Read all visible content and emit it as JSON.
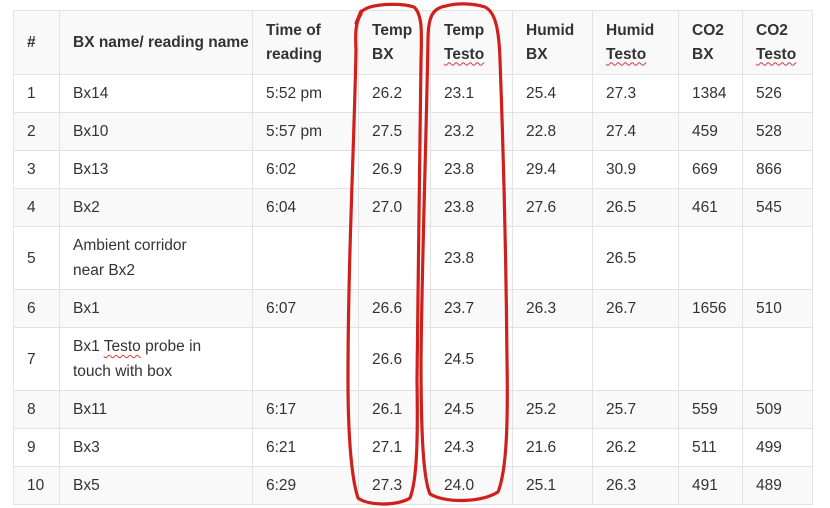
{
  "table": {
    "headers": {
      "num": "#",
      "name": "BX name/ reading name",
      "time_line1": "Time of",
      "time_line2": "reading",
      "tempbx_line1": "Temp",
      "tempbx_line2": "BX",
      "temptesto_line1": "Temp",
      "temptesto_line2": "Testo",
      "humidbx_line1": "Humid",
      "humidbx_line2": "BX",
      "humidtesto_line1": "Humid",
      "humidtesto_line2": "Testo",
      "co2bx_line1": "CO2",
      "co2bx_line2": "BX",
      "co2testo_line1": "CO2",
      "co2testo_line2": "Testo"
    },
    "rows": [
      {
        "num": "1",
        "name": "Bx14",
        "time": "5:52 pm",
        "temp_bx": "26.2",
        "temp_testo": "23.1",
        "humid_bx": "25.4",
        "humid_testo": "27.3",
        "co2_bx": "1384",
        "co2_testo": "526"
      },
      {
        "num": "2",
        "name": "Bx10",
        "time": "5:57 pm",
        "temp_bx": "27.5",
        "temp_testo": "23.2",
        "humid_bx": "22.8",
        "humid_testo": "27.4",
        "co2_bx": "459",
        "co2_testo": "528"
      },
      {
        "num": "3",
        "name": "Bx13",
        "time": "6:02",
        "temp_bx": "26.9",
        "temp_testo": "23.8",
        "humid_bx": "29.4",
        "humid_testo": "30.9",
        "co2_bx": "669",
        "co2_testo": "866"
      },
      {
        "num": "4",
        "name": "Bx2",
        "time": "6:04",
        "temp_bx": "27.0",
        "temp_testo": "23.8",
        "humid_bx": "27.6",
        "humid_testo": "26.5",
        "co2_bx": "461",
        "co2_testo": "545"
      },
      {
        "num": "5",
        "name_line1": "Ambient corridor",
        "name_line2": "near Bx2",
        "time": "",
        "temp_bx": "",
        "temp_testo": "23.8",
        "humid_bx": "",
        "humid_testo": "26.5",
        "co2_bx": "",
        "co2_testo": ""
      },
      {
        "num": "6",
        "name": "Bx1",
        "time": "6:07",
        "temp_bx": "26.6",
        "temp_testo": "23.7",
        "humid_bx": "26.3",
        "humid_testo": "26.7",
        "co2_bx": "1656",
        "co2_testo": "510"
      },
      {
        "num": "7",
        "name_line1_a": "Bx1 ",
        "name_line1_b": "Testo",
        "name_line1_c": " probe in",
        "name_line2": "touch with box",
        "time": "",
        "temp_bx": "26.6",
        "temp_testo": "24.5",
        "humid_bx": "",
        "humid_testo": "",
        "co2_bx": "",
        "co2_testo": ""
      },
      {
        "num": "8",
        "name": "Bx11",
        "time": "6:17",
        "temp_bx": "26.1",
        "temp_testo": "24.5",
        "humid_bx": "25.2",
        "humid_testo": "25.7",
        "co2_bx": "559",
        "co2_testo": "509"
      },
      {
        "num": "9",
        "name": "Bx3",
        "time": "6:21",
        "temp_bx": "27.1",
        "temp_testo": "24.3",
        "humid_bx": "21.6",
        "humid_testo": "26.2",
        "co2_bx": "511",
        "co2_testo": "499"
      },
      {
        "num": "10",
        "name": "Bx5",
        "time": "6:29",
        "temp_bx": "27.3",
        "temp_testo": "24.0",
        "humid_bx": "25.1",
        "humid_testo": "26.3",
        "co2_bx": "491",
        "co2_testo": "489"
      }
    ]
  },
  "colors": {
    "annotation": "#d0201c",
    "border": "#e2e2e2",
    "text": "#333333",
    "stripe": "#f9f9f9"
  }
}
